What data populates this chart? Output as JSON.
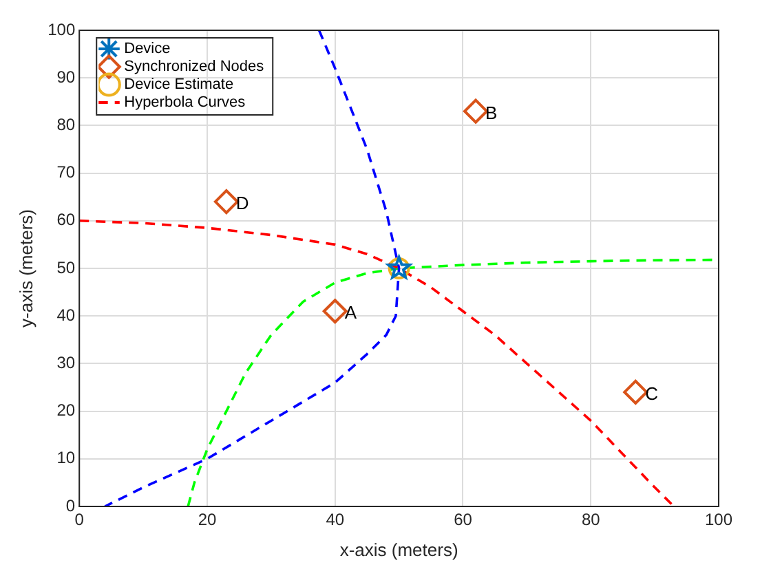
{
  "chart_data": {
    "type": "scatter",
    "xlabel": "x-axis (meters)",
    "ylabel": "y-axis (meters)",
    "xlim": [
      0,
      100
    ],
    "ylim": [
      0,
      100
    ],
    "xticks": [
      0,
      20,
      40,
      60,
      80,
      100
    ],
    "yticks": [
      0,
      10,
      20,
      30,
      40,
      50,
      60,
      70,
      80,
      90,
      100
    ],
    "grid": true,
    "legend": "top left",
    "series": [
      {
        "name": "Device",
        "type": "scatter",
        "marker": "star",
        "color": "#0072bd",
        "x": [
          50
        ],
        "values": [
          50
        ]
      },
      {
        "name": "Synchronized Nodes",
        "type": "scatter",
        "marker": "diamond",
        "color": "#d95319",
        "x": [
          40,
          62,
          87,
          23
        ],
        "values": [
          41,
          83,
          24,
          64
        ]
      },
      {
        "name": "Device Estimate",
        "type": "scatter",
        "marker": "circle",
        "color": "#edb120",
        "x": [
          50
        ],
        "values": [
          50
        ]
      },
      {
        "name": "Hyperbola Curves",
        "type": "line",
        "marker": "none",
        "line_style": "dashed",
        "color": "#ff0000",
        "x": [
          0,
          10,
          20,
          30,
          40,
          45,
          50,
          55,
          60,
          65,
          70,
          75,
          80,
          85,
          90,
          93
        ],
        "values": [
          60,
          59.5,
          58.5,
          57,
          55,
          53,
          50,
          46,
          41,
          36,
          30,
          24,
          18,
          11,
          4,
          0
        ]
      },
      {
        "type": "line",
        "marker": "none",
        "line_style": "dashed",
        "color": "#0000ff",
        "x": [
          37.5,
          40,
          45,
          48,
          50,
          49.5,
          48,
          45,
          40,
          35,
          30,
          25,
          20,
          15,
          10,
          4
        ],
        "values": [
          100,
          92,
          75,
          62,
          50,
          40,
          36,
          32,
          26,
          22,
          18,
          14,
          10,
          7,
          4,
          0
        ]
      },
      {
        "type": "line",
        "marker": "none",
        "line_style": "dashed",
        "color": "#00ff00",
        "x": [
          17,
          18,
          20,
          23,
          26,
          30,
          35,
          40,
          45,
          50,
          60,
          70,
          80,
          90,
          100
        ],
        "values": [
          0,
          5,
          12,
          20,
          28,
          36,
          43,
          47,
          49,
          50,
          50.7,
          51.2,
          51.5,
          51.7,
          51.8
        ]
      }
    ],
    "annotations": [
      {
        "text": "A",
        "x": 40,
        "y": 41
      },
      {
        "text": "B",
        "x": 62,
        "y": 83
      },
      {
        "text": "C",
        "x": 87,
        "y": 24
      },
      {
        "text": "D",
        "x": 23,
        "y": 64
      }
    ]
  }
}
